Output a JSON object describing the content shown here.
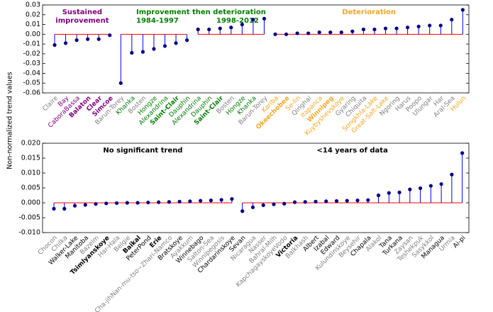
{
  "ylabel": "Non-normalized trend values",
  "chart_data": [
    {
      "type": "stem",
      "ylim": [
        -0.06,
        0.03
      ],
      "yticks": [
        0.03,
        0.02,
        0.01,
        {
          "value": 0,
          "label": "0.00"
        },
        -0.01,
        -0.02,
        -0.03,
        -0.04,
        -0.05,
        -0.06
      ],
      "stem_color": "#0000ff",
      "marker_color": "#00008b",
      "baseline_color": "#ff0000",
      "groups": [
        {
          "title": [
            "Sustained",
            "improvement"
          ],
          "title_color": "#800080",
          "categories": [
            "Claire",
            "Bay",
            "CaboraBassa",
            "Balaton",
            "Clear",
            "Simcoe"
          ],
          "label_colors": [
            "#808080",
            "#800080",
            "#800080",
            "#800080",
            "#800080",
            "#800080"
          ],
          "bold": [
            3,
            4,
            5
          ],
          "values": [
            -0.011,
            -0.009,
            -0.006,
            -0.005,
            -0.005,
            -0.001
          ]
        },
        {
          "title": [
            "Improvement then deterioration",
            "1984-1997"
          ],
          "title_color": "#008000",
          "categories": [
            "Barun-Torey",
            "Khanka",
            "Bosten",
            "Hongze",
            "Alexandrina",
            "Saint-Clair",
            "Dauphin"
          ],
          "label_colors": [
            "#808080",
            "#008000",
            "#808080",
            "#008000",
            "#008000",
            "#008000",
            "#008000"
          ],
          "bold": [
            5
          ],
          "values": [
            -0.05,
            -0.019,
            -0.018,
            -0.015,
            -0.012,
            -0.009,
            -0.006
          ]
        },
        {
          "title": [
            "1998-2012"
          ],
          "title_color": "#008000",
          "categories": [
            "Alexandrina",
            "Dauphin",
            "Saint-Clair",
            "Bosten",
            "Hongze",
            "Khanka",
            "Barun-Torey"
          ],
          "label_colors": [
            "#008000",
            "#008000",
            "#008000",
            "#808080",
            "#008000",
            "#008000",
            "#808080"
          ],
          "bold": [
            2
          ],
          "values": [
            0.005,
            0.005,
            0.006,
            0.007,
            0.01,
            0.015,
            0.016
          ]
        },
        {
          "title": [
            "Deterioration"
          ],
          "title_color": "#f5a623",
          "categories": [
            "Kariba",
            "Okeechobee",
            "Se-lin",
            "Qinghai",
            "Itapanca",
            "Winnipeg",
            "Kuybyshevskoye",
            "Gyaring",
            "Chiquita",
            "Songkhla-Lake",
            "Great-Salt-Lake",
            "Ngoring",
            "Harus",
            "Poopo",
            "Ulungar",
            "Har",
            "Aral-Sea",
            "Hulun"
          ],
          "label_colors": [
            "#f5a623",
            "#f5a623",
            "#f5a623",
            "#808080",
            "#f5a623",
            "#f5a623",
            "#f5a623",
            "#808080",
            "#808080",
            "#f5a623",
            "#f5a623",
            "#808080",
            "#808080",
            "#808080",
            "#808080",
            "#808080",
            "#808080",
            "#f5a623"
          ],
          "bold": [
            1,
            5
          ],
          "values": [
            0.0,
            0.0,
            0.001,
            0.001,
            0.002,
            0.002,
            0.002,
            0.003,
            0.005,
            0.005,
            0.006,
            0.006,
            0.007,
            0.008,
            0.009,
            0.009,
            0.015,
            0.025
          ]
        }
      ]
    },
    {
      "type": "stem",
      "ylim": [
        -0.01,
        0.02
      ],
      "yticks": [
        {
          "value": 0.02,
          "label": "0.020"
        },
        0.015,
        {
          "value": 0.01,
          "label": "0.010"
        },
        0.005,
        {
          "value": 0,
          "label": "0.000"
        },
        -0.005,
        {
          "value": -0.01,
          "label": "-0.010"
        }
      ],
      "stem_color": "#0000ff",
      "marker_color": "#00008b",
      "baseline_color": "#ff0000",
      "groups": [
        {
          "title": [
            "No significant trend"
          ],
          "title_color": "#000000",
          "categories": [
            "Chocon",
            "Chilka",
            "Walker-Lake",
            "Manitoba",
            "Bazelm",
            "Tsimlyanskoye",
            "Har-Hala",
            "Belgie",
            "Baikal",
            "PeterPond",
            "Erie",
            "Cha-jihNan-mu-tso~Zhari-Namco",
            "Bratskoye",
            "Ayakkum",
            "Winnebago",
            "Salton-Sea",
            "Winnipegosis",
            "Chardarinskoye"
          ],
          "label_colors": [
            "#808080",
            "#808080",
            "#000000",
            "#000000",
            "#808080",
            "#000000",
            "#808080",
            "#808080",
            "#000000",
            "#000000",
            "#000000",
            "#808080",
            "#000000",
            "#808080",
            "#000000",
            "#808080",
            "#808080",
            "#000000"
          ],
          "bold": [
            5,
            8,
            10
          ],
          "values": [
            -0.002,
            -0.002,
            -0.001,
            -0.0007,
            -0.0004,
            -0.0002,
            -0.0001,
            0.0,
            0.0,
            0.0001,
            0.0002,
            0.0003,
            0.0004,
            0.0005,
            0.0007,
            0.0008,
            0.001,
            0.0013
          ]
        },
        {
          "title": [
            "<14 years of data"
          ],
          "title_color": "#000000",
          "categories": [
            "Sevan",
            "Nicaragua",
            "Nasser",
            "Bahral-Milh",
            "KapchagayskoyeVodo",
            "Victoria",
            "Balkhash",
            "Albert",
            "Izabal",
            "Edward",
            "Kulundinskoye",
            "Beysehir",
            "Chapala",
            "Alakol",
            "Tana",
            "Turkana",
            "Zaysan",
            "Teshekpuk",
            "Sasykkol",
            "Managua",
            "Urmia",
            "Ai-pi"
          ],
          "label_colors": [
            "#000000",
            "#808080",
            "#808080",
            "#808080",
            "#808080",
            "#000000",
            "#808080",
            "#000000",
            "#000000",
            "#000000",
            "#808080",
            "#808080",
            "#000000",
            "#808080",
            "#000000",
            "#000000",
            "#808080",
            "#808080",
            "#808080",
            "#000000",
            "#808080",
            "#000000"
          ],
          "bold": [
            5
          ],
          "values": [
            -0.0028,
            -0.0015,
            -0.0008,
            -0.0005,
            -0.0003,
            0.0002,
            0.0003,
            0.0004,
            0.0005,
            0.0006,
            0.0007,
            0.0008,
            0.0009,
            0.0025,
            0.0033,
            0.0035,
            0.0045,
            0.0049,
            0.0057,
            0.0063,
            0.0095,
            0.0167
          ]
        }
      ]
    }
  ]
}
